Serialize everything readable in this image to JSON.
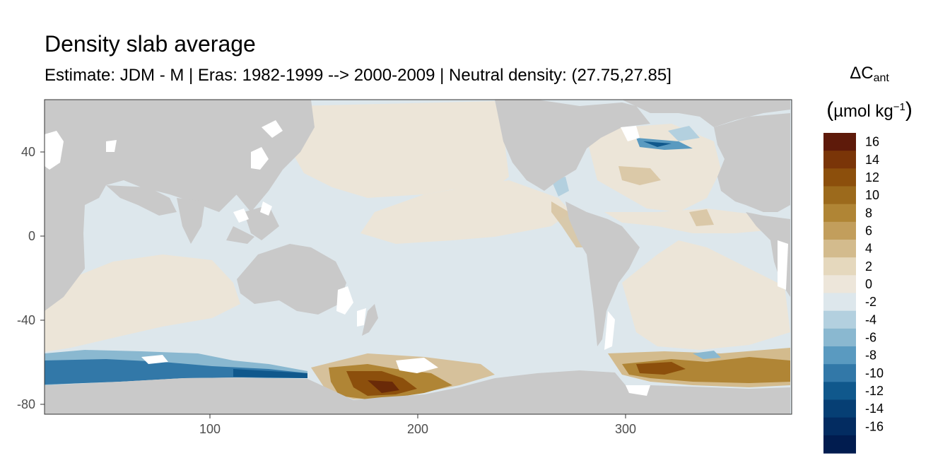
{
  "title": "Density slab average",
  "subtitle": "Estimate: JDM - M | Eras: 1982-1999 --> 2000-2009 | Neutral density: (27.75,27.85]",
  "legend": {
    "symbol": "ΔC",
    "symbol_sub": "ant",
    "unit_open": "(",
    "unit_main": "µmol kg",
    "unit_sup": "−1",
    "unit_close": ")",
    "bins": [
      {
        "label": "16",
        "color": "#5e1a0a"
      },
      {
        "label": "14",
        "color": "#7a3508"
      },
      {
        "label": "12",
        "color": "#8c4f0c"
      },
      {
        "label": "10",
        "color": "#9c6a1c"
      },
      {
        "label": "8",
        "color": "#b08535"
      },
      {
        "label": "6",
        "color": "#c29e5c"
      },
      {
        "label": "4",
        "color": "#d3bb8d"
      },
      {
        "label": "2",
        "color": "#e5d8bd"
      },
      {
        "label": "0",
        "color": "#ede6da"
      },
      {
        "label": "-2",
        "color": "#dde7ec"
      },
      {
        "label": "-4",
        "color": "#b3d0df"
      },
      {
        "label": "-6",
        "color": "#8ab8d0"
      },
      {
        "label": "-8",
        "color": "#5a9ac0"
      },
      {
        "label": "-10",
        "color": "#3278a8"
      },
      {
        "label": "-12",
        "color": "#10588c"
      },
      {
        "label": "-14",
        "color": "#063f74"
      },
      {
        "label": "-16",
        "color": "#032c61"
      },
      {
        "label": "",
        "color": "#011c4f"
      }
    ]
  },
  "map": {
    "x_axis": {
      "ticks": [
        "100",
        "200",
        "300"
      ],
      "range": [
        20,
        380
      ]
    },
    "y_axis": {
      "ticks": [
        "40",
        "0",
        "-40",
        "-80"
      ],
      "range": [
        -85,
        65
      ]
    },
    "colors": {
      "land": "#c9c9c9",
      "ocean_base": "#dde7ec",
      "warm_light": "#ece5d8",
      "missing": "#ffffff",
      "frame": "#333333"
    }
  }
}
